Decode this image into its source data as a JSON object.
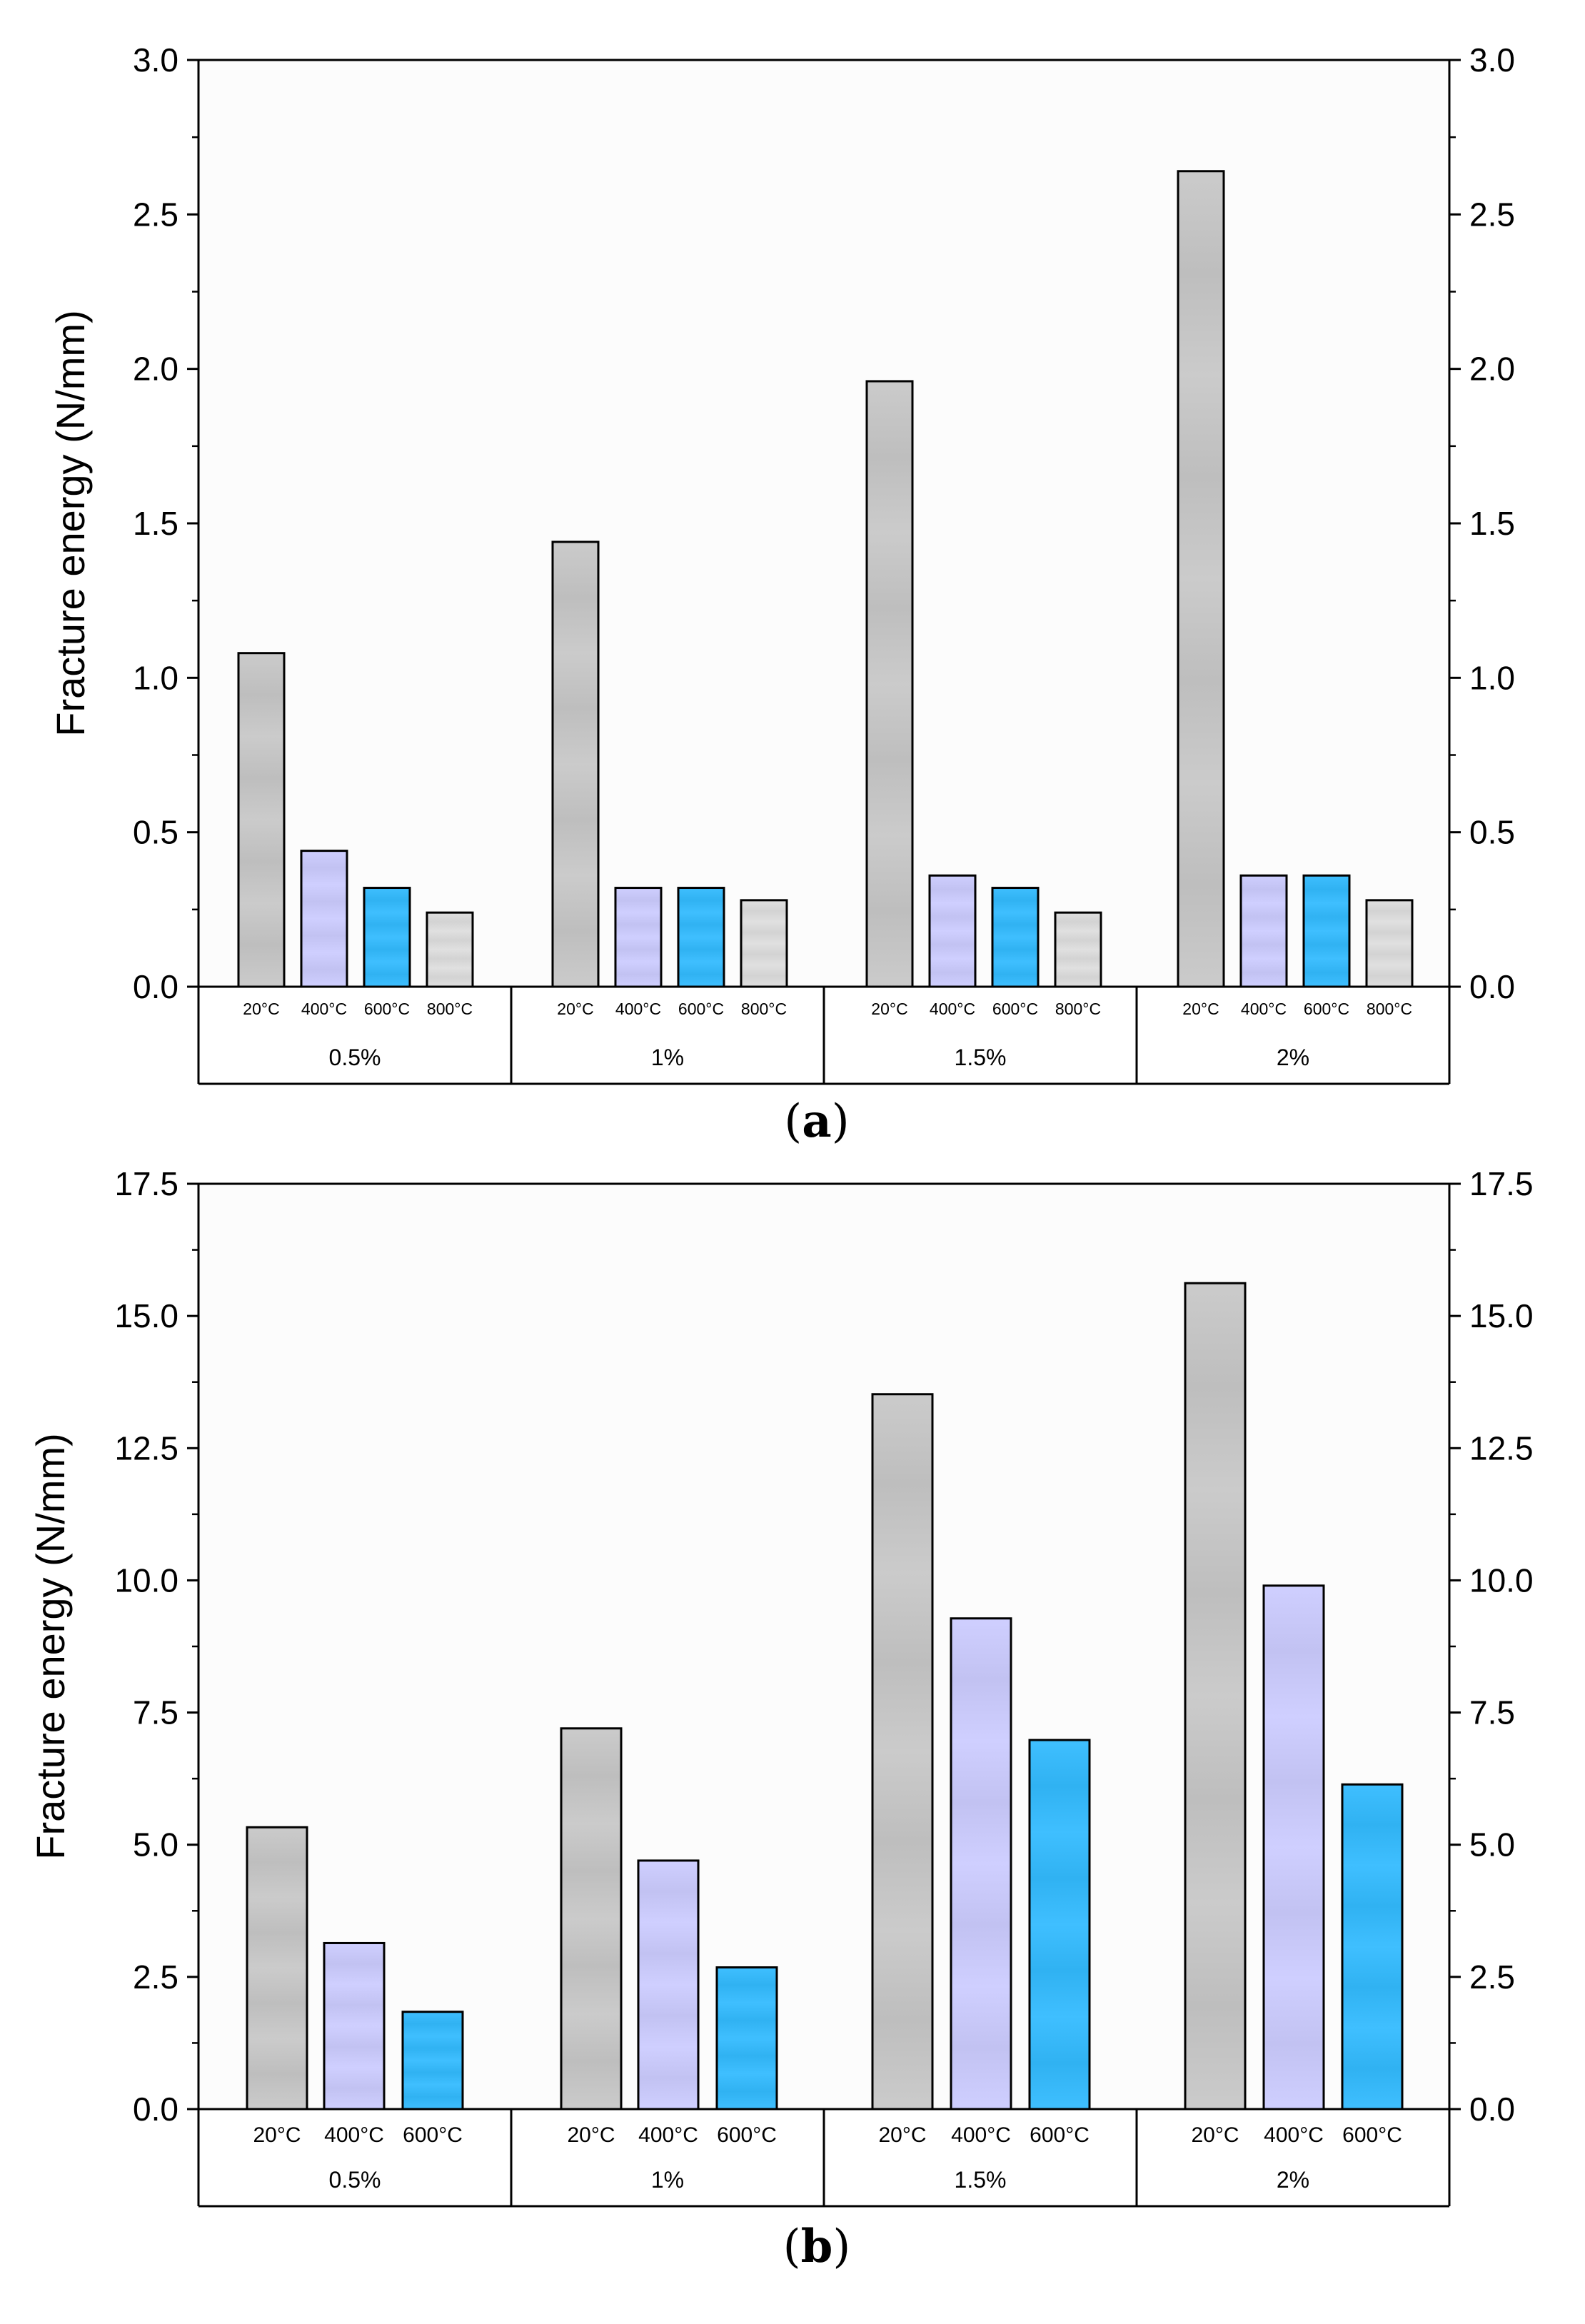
{
  "chart_data": [
    {
      "type": "bar",
      "panel_label": "a",
      "ylabel": "Fracture energy (N/mm)",
      "ylim": [
        0,
        3.0
      ],
      "yticks": [
        "0.0",
        "0.5",
        "1.0",
        "1.5",
        "2.0",
        "2.5",
        "3.0"
      ],
      "ytick_values": [
        0,
        0.5,
        1.0,
        1.5,
        2.0,
        2.5,
        3.0
      ],
      "right_axis": true,
      "grid": false,
      "groups": [
        "0.5%",
        "1%",
        "1.5%",
        "2%"
      ],
      "categories": [
        "20°C",
        "400°C",
        "600°C",
        "800°C"
      ],
      "colors": [
        "#c8c8c8",
        "#ccccff",
        "#33bbff",
        "#dedede"
      ],
      "values": [
        [
          1.08,
          0.44,
          0.32,
          0.24
        ],
        [
          1.44,
          0.32,
          0.32,
          0.28
        ],
        [
          1.96,
          0.36,
          0.32,
          0.24
        ],
        [
          2.64,
          0.36,
          0.36,
          0.28
        ]
      ]
    },
    {
      "type": "bar",
      "panel_label": "b",
      "ylabel": "Fracture energy (N/mm)",
      "ylim": [
        0,
        17.5
      ],
      "yticks": [
        "0.0",
        "2.5",
        "5.0",
        "7.5",
        "10.0",
        "12.5",
        "15.0",
        "17.5"
      ],
      "ytick_values": [
        0,
        2.5,
        5.0,
        7.5,
        10.0,
        12.5,
        15.0,
        17.5
      ],
      "right_axis": true,
      "grid": false,
      "groups": [
        "0.5%",
        "1%",
        "1.5%",
        "2%"
      ],
      "categories": [
        "20°C",
        "400°C",
        "600°C"
      ],
      "colors": [
        "#c8c8c8",
        "#ccccff",
        "#33bbff"
      ],
      "values": [
        [
          5.33,
          3.14,
          1.84
        ],
        [
          7.2,
          4.7,
          2.68
        ],
        [
          13.52,
          9.28,
          6.98
        ],
        [
          15.62,
          9.9,
          6.14
        ]
      ]
    }
  ]
}
